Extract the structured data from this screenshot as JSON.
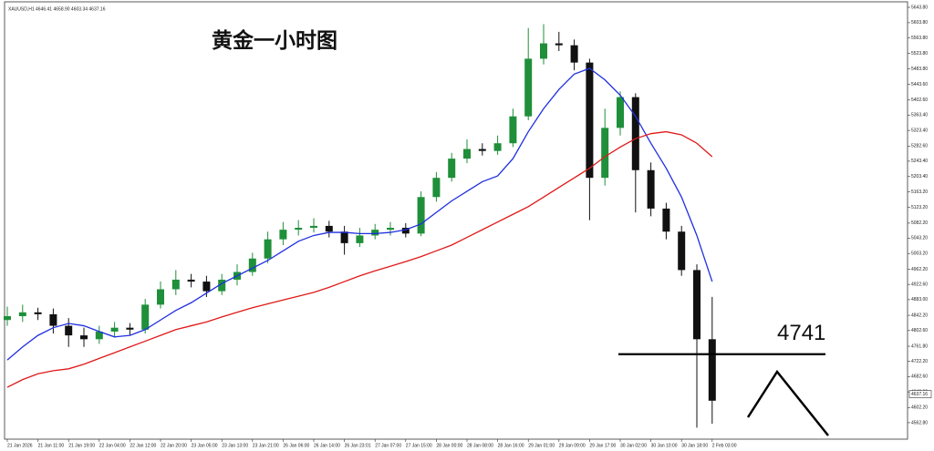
{
  "chart_data": {
    "type": "candlestick",
    "title": "黄金一小时图",
    "header": "XAUUSD,H1  4646.41 4658.90 4603.34 4637.16",
    "categories": [
      "21 Jan 2026",
      null,
      "21 Jan 11:00",
      null,
      "21 Jan 19:00",
      null,
      "22 Jan 04:00",
      null,
      "22 Jan 12:00",
      null,
      "22 Jan 20:00",
      null,
      "23 Jan 05:00",
      null,
      "23 Jan 13:00",
      null,
      "23 Jan 21:00",
      null,
      "26 Jan 06:00",
      null,
      "26 Jan 14:00",
      null,
      "26 Jan 23:01",
      null,
      "27 Jan 07:00",
      null,
      "27 Jan 15:00",
      null,
      "28 Jan 00:00",
      null,
      "28 Jan 08:00",
      null,
      "28 Jan 16:00",
      null,
      "29 Jan 01:00",
      null,
      "29 Jan 09:00",
      null,
      "29 Jan 17:00",
      null,
      "30 Jan 02:00",
      null,
      "30 Jan 10:00",
      null,
      "30 Jan 18:00",
      null,
      "2 Feb 03:00"
    ],
    "open": [
      4830,
      4840,
      4850,
      4845,
      4815,
      4790,
      4780,
      4800,
      4810,
      4805,
      4870,
      4910,
      4935,
      4930,
      4905,
      4935,
      4955,
      4990,
      5040,
      5065,
      5070,
      5075,
      5060,
      5030,
      5050,
      5065,
      5070,
      5055,
      5150,
      5200,
      5250,
      5275,
      5270,
      5290,
      5360,
      5510,
      5550,
      5545,
      5500,
      5200,
      5330,
      5410,
      5220,
      5120,
      5060,
      4960,
      4780
    ],
    "high": [
      4865,
      4870,
      4862,
      4860,
      4835,
      4810,
      4815,
      4825,
      4822,
      4885,
      4930,
      4960,
      4950,
      4945,
      4950,
      4975,
      5005,
      5060,
      5085,
      5090,
      5095,
      5088,
      5075,
      5070,
      5080,
      5085,
      5082,
      5165,
      5215,
      5265,
      5300,
      5290,
      5310,
      5380,
      5590,
      5600,
      5580,
      5560,
      5510,
      5380,
      5425,
      5420,
      5240,
      5135,
      5075,
      4975,
      4890
    ],
    "low": [
      4815,
      4825,
      4830,
      4795,
      4760,
      4760,
      4768,
      4785,
      4790,
      4795,
      4860,
      4895,
      4915,
      4890,
      4895,
      4920,
      4945,
      4978,
      5025,
      5050,
      5058,
      5045,
      5000,
      5020,
      5040,
      5050,
      5045,
      5048,
      5138,
      5190,
      5238,
      5258,
      5260,
      5280,
      5350,
      5495,
      5530,
      5480,
      5090,
      5180,
      5310,
      5110,
      5100,
      5040,
      4945,
      4550,
      4560
    ],
    "close": [
      4840,
      4850,
      4845,
      4815,
      4790,
      4780,
      4800,
      4810,
      4805,
      4870,
      4910,
      4935,
      4930,
      4905,
      4935,
      4955,
      4990,
      5040,
      5065,
      5070,
      5075,
      5060,
      5030,
      5050,
      5065,
      5070,
      5055,
      5150,
      5200,
      5250,
      5275,
      5270,
      5290,
      5360,
      5510,
      5550,
      5545,
      5500,
      5200,
      5330,
      5410,
      5220,
      5120,
      5060,
      4960,
      4780,
      4620
    ],
    "up_color": "#1f8f3a",
    "down_color": "#111111",
    "lines": [
      {
        "color": "#1f2fe0",
        "values": [
          4726,
          4760,
          4790,
          4810,
          4821,
          4815,
          4800,
          4786,
          4790,
          4805,
          4830,
          4855,
          4875,
          4900,
          4925,
          4945,
          4965,
          4985,
          5010,
          5035,
          5050,
          5058,
          5058,
          5055,
          5055,
          5058,
          5065,
          5080,
          5110,
          5140,
          5165,
          5190,
          5205,
          5250,
          5320,
          5380,
          5430,
          5470,
          5485,
          5455,
          5415,
          5360,
          5290,
          5225,
          5150,
          5050,
          4930
        ]
      },
      {
        "color": "#e01818",
        "values": [
          4655,
          4675,
          4690,
          4698,
          4703,
          4715,
          4730,
          4745,
          4760,
          4775,
          4790,
          4805,
          4815,
          4825,
          4838,
          4850,
          4862,
          4872,
          4882,
          4892,
          4902,
          4915,
          4930,
          4945,
          4958,
          4970,
          4982,
          4995,
          5010,
          5025,
          5045,
          5065,
          5085,
          5105,
          5125,
          5150,
          5175,
          5200,
          5225,
          5255,
          5280,
          5302,
          5315,
          5320,
          5312,
          5290,
          5255
        ]
      }
    ],
    "level": 4741,
    "current_price": {
      "value": 4637.16,
      "label": "4637.16"
    },
    "ylim": [
      4524.7,
      5662.8
    ],
    "yticks": [
      {
        "value": 5643.8,
        "label": "5643.80"
      },
      {
        "value": 5603.8,
        "label": "5603.80"
      },
      {
        "value": 5563.8,
        "label": "5563.80"
      },
      {
        "value": 5523.8,
        "label": "5523.80"
      },
      {
        "value": 5483.8,
        "label": "5483.80"
      },
      {
        "value": 5443.6,
        "label": "5443.60"
      },
      {
        "value": 5402.6,
        "label": "5402.60"
      },
      {
        "value": 5363.4,
        "label": "5363.40"
      },
      {
        "value": 5323.4,
        "label": "5323.40"
      },
      {
        "value": 5282.6,
        "label": "5282.60"
      },
      {
        "value": 5243.4,
        "label": "5243.40"
      },
      {
        "value": 5203.4,
        "label": "5203.40"
      },
      {
        "value": 5163.2,
        "label": "5163.20"
      },
      {
        "value": 5123.2,
        "label": "5123.20"
      },
      {
        "value": 5082.2,
        "label": "5082.20"
      },
      {
        "value": 5043.2,
        "label": "5043.20"
      },
      {
        "value": 5003.2,
        "label": "5003.20"
      },
      {
        "value": 4962.2,
        "label": "4962.20"
      },
      {
        "value": 4922.6,
        "label": "4922.60"
      },
      {
        "value": 4883,
        "label": "4883.00"
      },
      {
        "value": 4842.2,
        "label": "4842.20"
      },
      {
        "value": 4802.6,
        "label": "4802.60"
      },
      {
        "value": 4761.8,
        "label": "4761.80"
      },
      {
        "value": 4722.2,
        "label": "4722.20"
      },
      {
        "value": 4682.6,
        "label": "4682.60"
      },
      {
        "value": 4643,
        "label": "4643.00"
      },
      {
        "value": 4602.2,
        "label": "4602.20"
      },
      {
        "value": 4562.8,
        "label": "4562.80"
      }
    ]
  }
}
